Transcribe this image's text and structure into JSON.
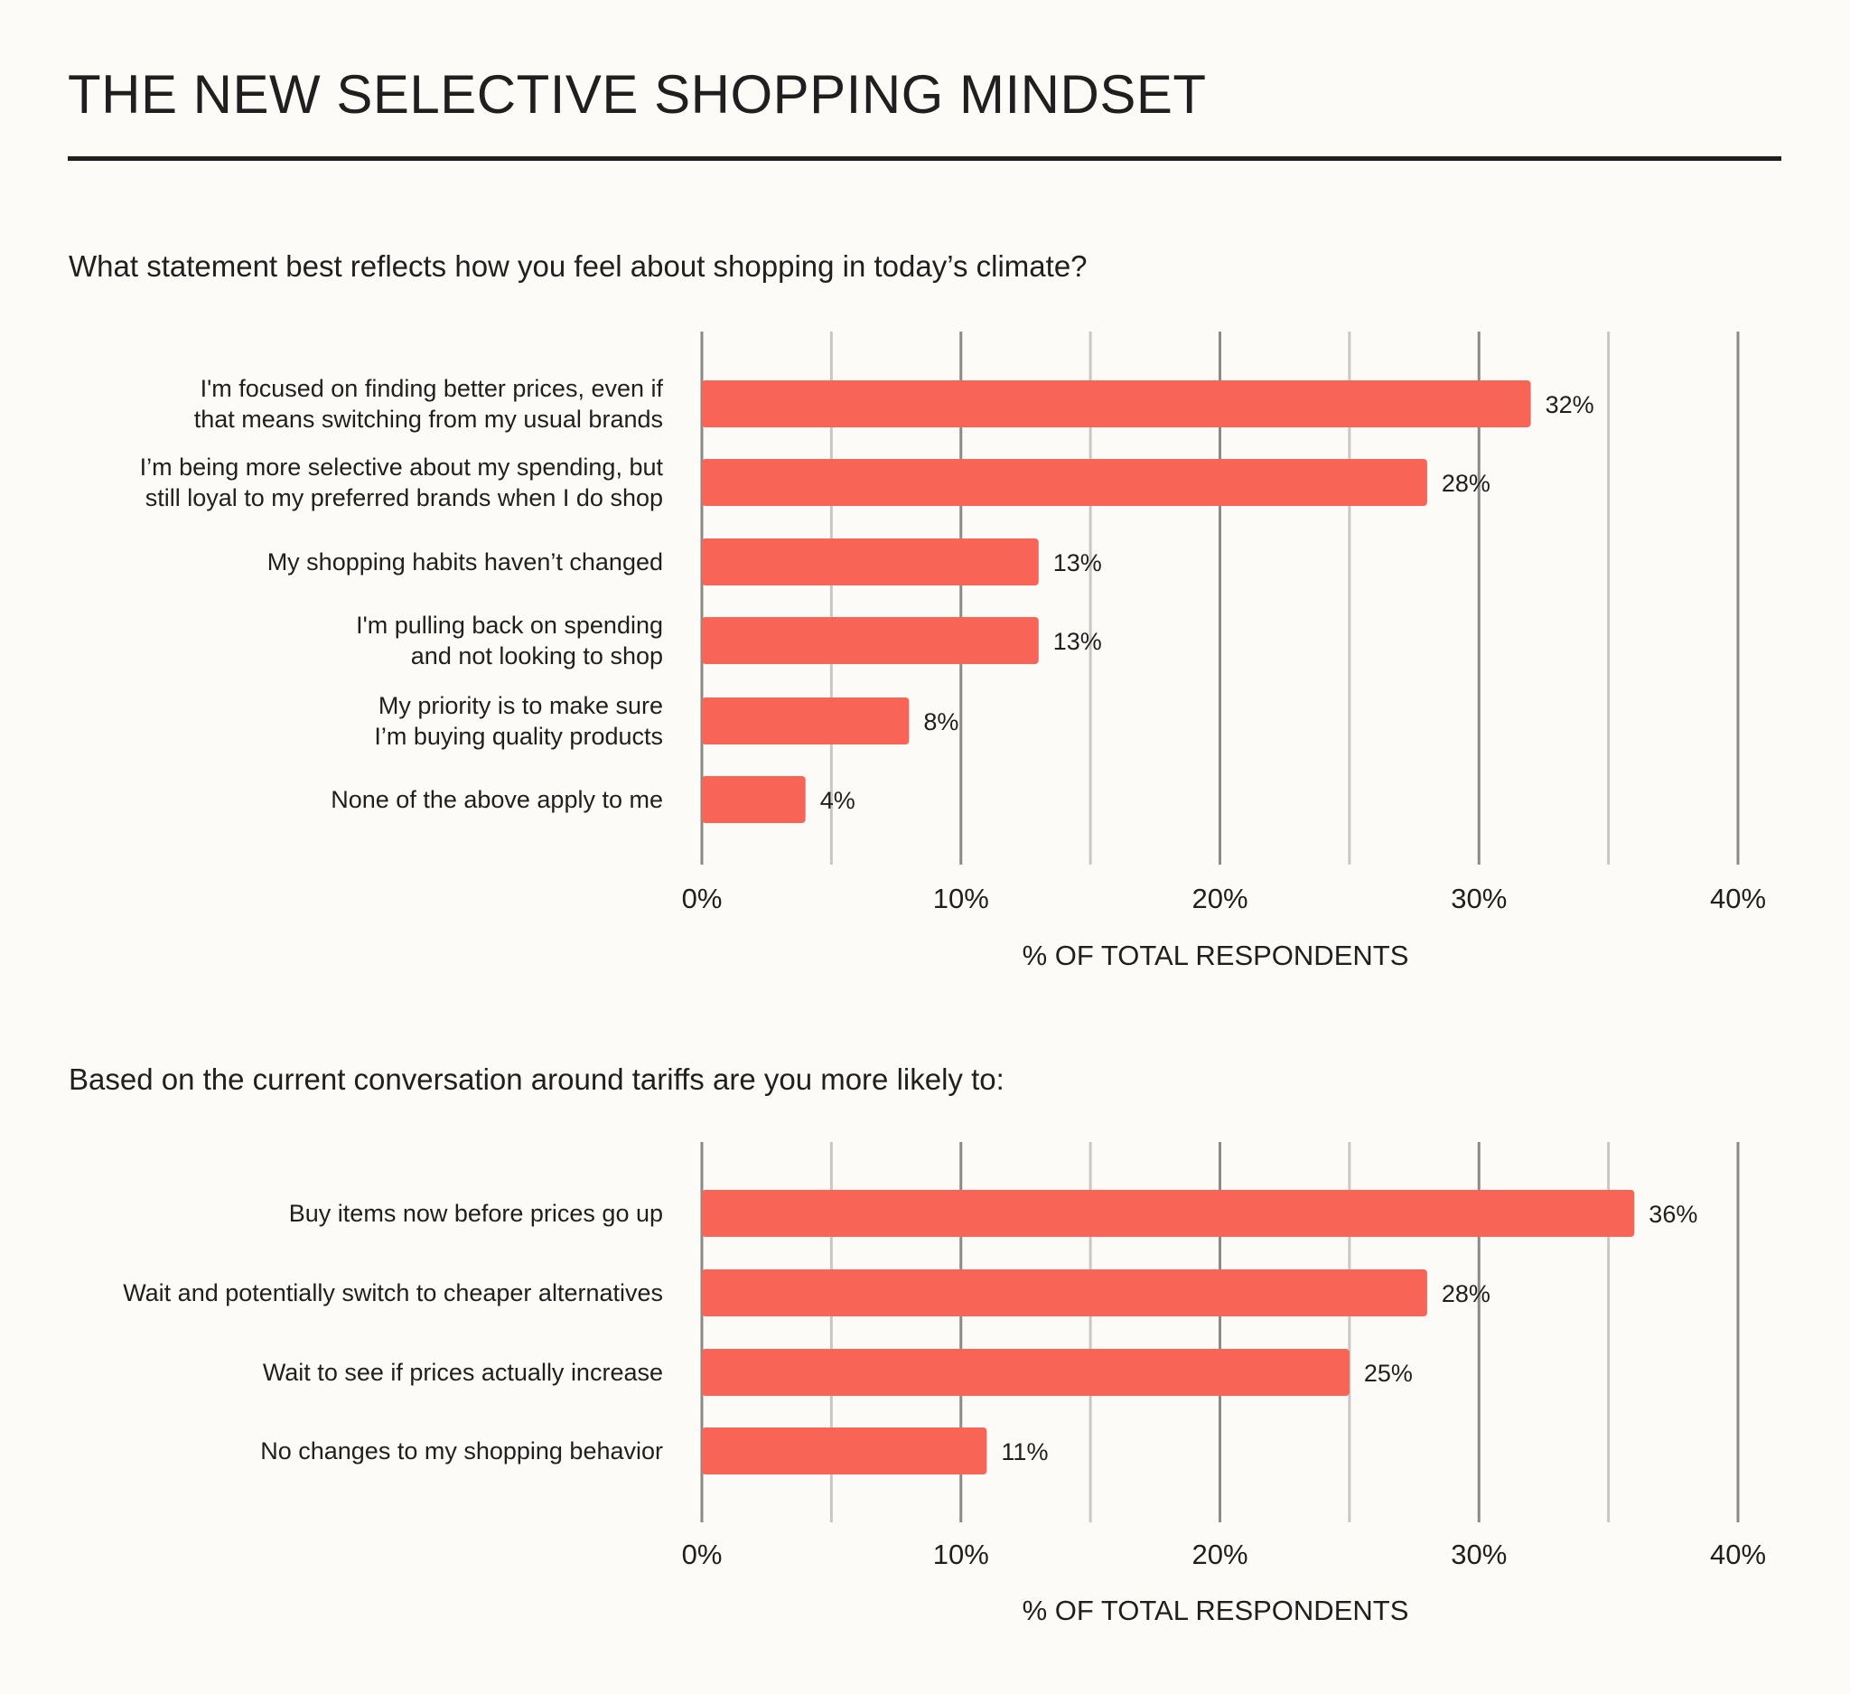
{
  "title": "THE NEW SELECTIVE SHOPPING MINDSET",
  "colors": {
    "bar": "#f86455",
    "major_grid": "#8c8986",
    "minor_grid": "#cac7c3",
    "background": "#fdfbf8",
    "text": "#1f1f1f"
  },
  "chart_data": [
    {
      "type": "bar",
      "orientation": "horizontal",
      "title": "What statement best reflects how you feel about shopping in today’s climate?",
      "xlabel": "% OF TOTAL RESPONDENTS",
      "xlim": [
        0,
        40
      ],
      "xticks": [
        "0%",
        "10%",
        "20%",
        "30%",
        "40%"
      ],
      "grid": true,
      "categories": [
        [
          "I'm focused on finding better prices, even if",
          "that means switching from my usual brands"
        ],
        [
          "I’m being more selective about my spending, but",
          "still loyal to my preferred brands when I do shop"
        ],
        [
          "My shopping habits haven’t changed"
        ],
        [
          "I'm pulling back on spending",
          "and not looking to shop"
        ],
        [
          "My priority is to make sure",
          "I’m buying quality products"
        ],
        [
          "None of the above apply to me"
        ]
      ],
      "values": [
        32,
        28,
        13,
        13,
        8,
        4
      ],
      "data_labels": [
        "32%",
        "28%",
        "13%",
        "13%",
        "8%",
        "4%"
      ]
    },
    {
      "type": "bar",
      "orientation": "horizontal",
      "title": "Based on the current conversation around tariffs are you more likely to:",
      "xlabel": "% OF TOTAL RESPONDENTS",
      "xlim": [
        0,
        40
      ],
      "xticks": [
        "0%",
        "10%",
        "20%",
        "30%",
        "40%"
      ],
      "grid": true,
      "categories": [
        [
          "Buy items now before prices go up"
        ],
        [
          "Wait and potentially switch to cheaper alternatives"
        ],
        [
          "Wait to see if prices actually increase"
        ],
        [
          "No changes to my shopping behavior"
        ]
      ],
      "values": [
        36,
        28,
        25,
        11
      ],
      "data_labels": [
        "36%",
        "28%",
        "25%",
        "11%"
      ]
    }
  ]
}
